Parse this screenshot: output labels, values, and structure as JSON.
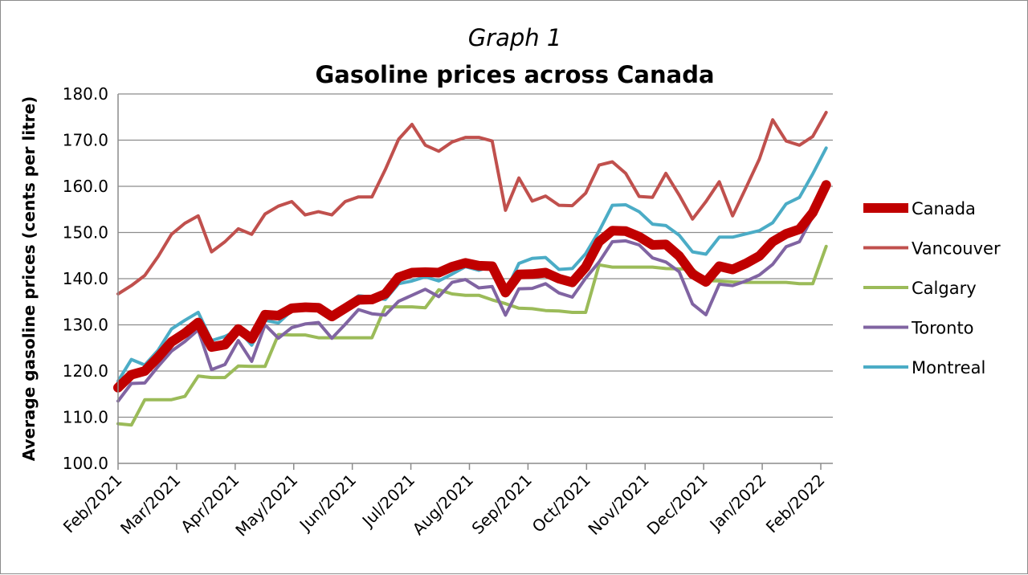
{
  "chart_data": {
    "type": "line",
    "subtitle": "Graph 1",
    "title": "Gasoline prices across Canada",
    "xlabel": "",
    "ylabel": "Average gasoline prices (cents per litre)",
    "ylim": [
      100,
      180
    ],
    "yticks": [
      "100.0",
      "110.0",
      "120.0",
      "130.0",
      "140.0",
      "150.0",
      "160.0",
      "170.0",
      "180.0"
    ],
    "xticks": [
      "Feb/2021",
      "Mar/2021",
      "Apr/2021",
      "May/2021",
      "Jun/2021",
      "Jul/2021",
      "Aug/2021",
      "Sep/2021",
      "Oct/2021",
      "Nov/2021",
      "Dec/2021",
      "Jan/2022",
      "Feb/2022"
    ],
    "grid": "horizontal",
    "legend": "right",
    "series": [
      {
        "name": "Canada",
        "color": "#c00000",
        "width": 12,
        "values": [
          116.4,
          119.2,
          120.0,
          123.0,
          126.3,
          128.2,
          130.5,
          125.2,
          125.7,
          129.1,
          127.0,
          132.2,
          132.0,
          133.6,
          133.8,
          133.7,
          131.8,
          133.6,
          135.4,
          135.5,
          136.7,
          140.3,
          141.3,
          141.4,
          141.3,
          142.6,
          143.4,
          142.8,
          142.7,
          137.0,
          140.9,
          141.0,
          141.3,
          140.0,
          139.2,
          142.5,
          148.0,
          150.4,
          150.3,
          149.1,
          147.3,
          147.4,
          144.9,
          141.0,
          139.3,
          142.7,
          142.0,
          143.3,
          144.9,
          148.0,
          149.7,
          150.7,
          154.3,
          160.3
        ]
      },
      {
        "name": "Vancouver",
        "color": "#c0504d",
        "width": 4,
        "values": [
          136.7,
          138.5,
          140.7,
          144.8,
          149.6,
          152.0,
          153.6,
          145.8,
          148.0,
          150.8,
          149.6,
          154.0,
          155.7,
          156.7,
          153.8,
          154.5,
          153.8,
          156.7,
          157.7,
          157.7,
          163.6,
          170.2,
          173.4,
          168.9,
          167.6,
          169.6,
          170.6,
          170.6,
          169.8,
          154.8,
          161.8,
          156.8,
          157.9,
          155.9,
          155.8,
          158.5,
          164.6,
          165.3,
          162.8,
          157.8,
          157.6,
          162.8,
          158.1,
          152.9,
          156.7,
          161.0,
          153.6,
          159.7,
          165.9,
          174.4,
          169.8,
          168.9,
          170.8,
          176.0
        ]
      },
      {
        "name": "Calgary",
        "color": "#9bbb59",
        "width": 4,
        "values": [
          108.6,
          108.3,
          113.8,
          113.8,
          113.8,
          114.5,
          118.9,
          118.6,
          118.6,
          121.1,
          121.0,
          121.0,
          127.9,
          127.8,
          127.8,
          127.2,
          127.2,
          127.2,
          127.2,
          127.2,
          133.9,
          133.9,
          133.9,
          133.7,
          137.6,
          136.7,
          136.4,
          136.4,
          135.4,
          134.6,
          133.6,
          133.5,
          133.1,
          133.0,
          132.7,
          132.7,
          143.0,
          142.5,
          142.5,
          142.5,
          142.5,
          142.2,
          142.1,
          142.1,
          139.6,
          139.5,
          139.3,
          139.2,
          139.2,
          139.2,
          139.2,
          138.9,
          138.9,
          147.0
        ]
      },
      {
        "name": "Toronto",
        "color": "#8064a2",
        "width": 4,
        "values": [
          113.5,
          117.3,
          117.4,
          121.0,
          124.3,
          126.4,
          128.9,
          120.3,
          121.4,
          126.6,
          122.1,
          130.0,
          127.1,
          129.4,
          130.2,
          130.5,
          127.1,
          130.1,
          133.3,
          132.4,
          132.1,
          135.1,
          136.4,
          137.7,
          136.1,
          139.2,
          139.8,
          138.0,
          138.3,
          132.1,
          137.8,
          137.9,
          138.9,
          136.9,
          136.0,
          140.1,
          143.6,
          148.0,
          148.2,
          147.3,
          144.5,
          143.6,
          141.5,
          134.5,
          132.2,
          138.8,
          138.5,
          139.5,
          140.8,
          143.1,
          146.9,
          148.0,
          153.5,
          159.2
        ]
      },
      {
        "name": "Montreal",
        "color": "#4bacc6",
        "width": 4,
        "values": [
          117.8,
          122.5,
          121.3,
          124.5,
          129.1,
          131.0,
          132.7,
          126.6,
          127.5,
          128.9,
          125.6,
          131.0,
          130.4,
          133.1,
          133.9,
          133.5,
          131.6,
          134.1,
          136.3,
          136.0,
          135.5,
          138.9,
          139.5,
          140.4,
          139.5,
          141.0,
          142.6,
          141.8,
          142.7,
          137.1,
          143.3,
          144.4,
          144.6,
          142.0,
          142.2,
          145.4,
          150.3,
          155.9,
          156.0,
          154.5,
          151.8,
          151.5,
          149.4,
          145.8,
          145.3,
          149.0,
          149.0,
          149.7,
          150.4,
          152.1,
          156.2,
          157.6,
          162.7,
          168.3
        ]
      }
    ]
  }
}
